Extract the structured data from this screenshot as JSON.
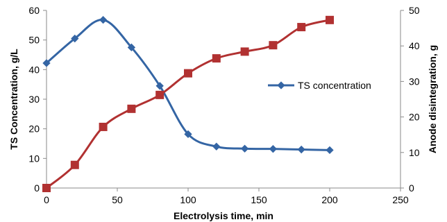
{
  "chart_data": {
    "type": "line",
    "xlabel": "Electrolysis time, min",
    "ylabel_left": "TS Concentration, g/L",
    "ylabel_right": "Anode disintegration, g",
    "xlim": [
      0,
      250
    ],
    "ylim_left": [
      0,
      60
    ],
    "ylim_right": [
      0,
      50
    ],
    "x_ticks": [
      0,
      50,
      100,
      150,
      200,
      250
    ],
    "y_ticks_left": [
      0,
      10,
      20,
      30,
      40,
      50,
      60
    ],
    "y_ticks_right": [
      0,
      10,
      20,
      30,
      40,
      50
    ],
    "grid": false,
    "legend_placement": "right",
    "series": [
      {
        "name": "TS concentration",
        "axis": "left",
        "marker": "diamond",
        "color": "#3465a4",
        "x": [
          0,
          20,
          40,
          60,
          80,
          100,
          120,
          140,
          160,
          180,
          200
        ],
        "y": [
          42.2,
          50.5,
          56.8,
          47.5,
          34.5,
          18.2,
          14.0,
          13.3,
          13.2,
          13.0,
          12.8
        ]
      },
      {
        "name": "",
        "axis": "right",
        "marker": "square",
        "color": "#b13131",
        "x": [
          0,
          20,
          40,
          60,
          80,
          100,
          120,
          140,
          160,
          180,
          200
        ],
        "y": [
          0.0,
          6.5,
          17.2,
          22.3,
          26.2,
          32.3,
          36.5,
          38.4,
          40.2,
          45.3,
          47.3
        ]
      }
    ]
  }
}
